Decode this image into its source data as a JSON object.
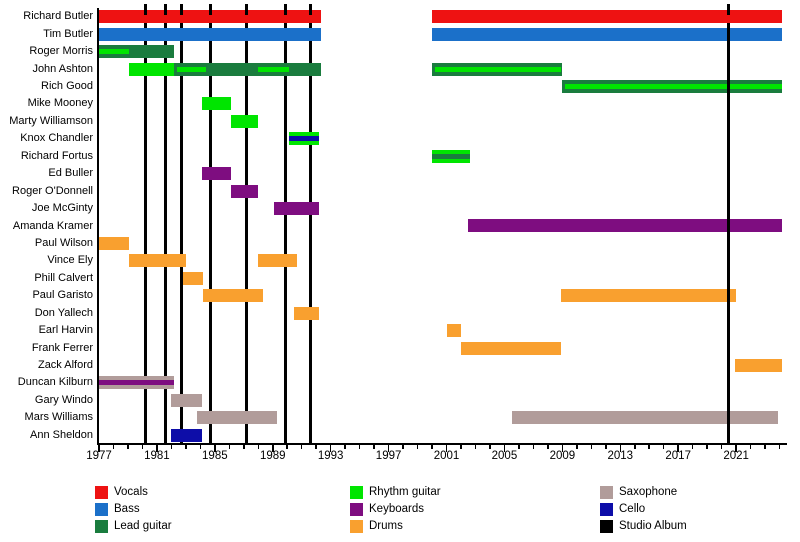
{
  "chart_data": {
    "type": "timeline",
    "x_axis": {
      "start": 1977,
      "end": 2024.3,
      "major_tick_years": [
        1977,
        1981,
        1985,
        1989,
        1993,
        1997,
        2001,
        2005,
        2009,
        2013,
        2017,
        2021
      ],
      "minor_tick_every": 1
    },
    "members": [
      {
        "name": "Richard Butler",
        "segments": [
          {
            "role": "vocals",
            "from": 1977,
            "till": 1992.3
          },
          {
            "role": "vocals",
            "from": 2000,
            "till": 2024.2
          }
        ]
      },
      {
        "name": "Tim Butler",
        "segments": [
          {
            "role": "bass",
            "from": 1977,
            "till": 1992.3
          },
          {
            "role": "bass",
            "from": 2000,
            "till": 2024.2
          }
        ]
      },
      {
        "name": "Roger Morris",
        "segments": [
          {
            "role": "lead_guitar",
            "from": 1977,
            "till": 1982.2,
            "stripes": [
              {
                "role": "rhythm_guitar",
                "from": 1977,
                "till": 1979.1
              }
            ]
          }
        ]
      },
      {
        "name": "John Ashton",
        "segments": [
          {
            "role": "rhythm_guitar",
            "from": 1979.1,
            "till": 1982.2
          },
          {
            "role": "lead_guitar",
            "from": 1982.2,
            "till": 1992.3,
            "stripes": [
              {
                "role": "rhythm_guitar",
                "from": 1982.4,
                "till": 1984.4
              },
              {
                "role": "rhythm_guitar",
                "from": 1988,
                "till": 1990.1
              }
            ]
          },
          {
            "role": "lead_guitar",
            "from": 2000,
            "till": 2009,
            "stripes": [
              {
                "role": "rhythm_guitar",
                "from": 2000.2,
                "till": 2008.9
              }
            ]
          }
        ]
      },
      {
        "name": "Rich Good",
        "segments": [
          {
            "role": "lead_guitar",
            "from": 2009,
            "till": 2024.2,
            "stripes": [
              {
                "role": "rhythm_guitar",
                "from": 2009.2,
                "till": 2024.2
              }
            ]
          }
        ]
      },
      {
        "name": "Mike Mooney",
        "segments": [
          {
            "role": "rhythm_guitar",
            "from": 1984.1,
            "till": 1986.1
          }
        ]
      },
      {
        "name": "Marty Williamson",
        "segments": [
          {
            "role": "rhythm_guitar",
            "from": 1986.1,
            "till": 1988
          }
        ]
      },
      {
        "name": "Knox Chandler",
        "segments": [
          {
            "role": "rhythm_guitar",
            "from": 1990.1,
            "till": 1992.2,
            "stripes": [
              {
                "role": "cello",
                "from": 1990.1,
                "till": 1992.2
              }
            ]
          }
        ]
      },
      {
        "name": "Richard Fortus",
        "segments": [
          {
            "role": "rhythm_guitar",
            "from": 2000,
            "till": 2002.6,
            "stripes": [
              {
                "role": "lead_guitar",
                "from": 2000,
                "till": 2002.6
              }
            ]
          }
        ]
      },
      {
        "name": "Ed Buller",
        "segments": [
          {
            "role": "keyboards",
            "from": 1984.1,
            "till": 1986.1
          }
        ]
      },
      {
        "name": "Roger O'Donnell",
        "segments": [
          {
            "role": "keyboards",
            "from": 1986.1,
            "till": 1988
          }
        ]
      },
      {
        "name": "Joe McGinty",
        "segments": [
          {
            "role": "keyboards",
            "from": 1989.1,
            "till": 1992.2
          }
        ]
      },
      {
        "name": "Amanda Kramer",
        "segments": [
          {
            "role": "keyboards",
            "from": 2002.5,
            "till": 2024.2
          }
        ]
      },
      {
        "name": "Paul Wilson",
        "segments": [
          {
            "role": "drums",
            "from": 1977,
            "till": 1979.1
          }
        ]
      },
      {
        "name": "Vince Ely",
        "segments": [
          {
            "role": "drums",
            "from": 1979.1,
            "till": 1983
          },
          {
            "role": "drums",
            "from": 1988,
            "till": 1990.7
          }
        ]
      },
      {
        "name": "Phill Calvert",
        "segments": [
          {
            "role": "drums",
            "from": 1982.8,
            "till": 1984.2
          }
        ]
      },
      {
        "name": "Paul Garisto",
        "segments": [
          {
            "role": "drums",
            "from": 1984.2,
            "till": 1988.3
          },
          {
            "role": "drums",
            "from": 2008.9,
            "till": 2021
          }
        ]
      },
      {
        "name": "Don Yallech",
        "segments": [
          {
            "role": "drums",
            "from": 1990.5,
            "till": 1992.2
          }
        ]
      },
      {
        "name": "Earl Harvin",
        "segments": [
          {
            "role": "drums",
            "from": 2001,
            "till": 2002
          }
        ]
      },
      {
        "name": "Frank Ferrer",
        "segments": [
          {
            "role": "drums",
            "from": 2002,
            "till": 2008.9
          }
        ]
      },
      {
        "name": "Zack Alford",
        "segments": [
          {
            "role": "drums",
            "from": 2020.9,
            "till": 2024.2
          }
        ]
      },
      {
        "name": "Duncan Kilburn",
        "segments": [
          {
            "role": "saxophone",
            "from": 1977,
            "till": 1982.2,
            "stripes": [
              {
                "role": "keyboards",
                "from": 1977,
                "till": 1982.2
              }
            ]
          }
        ]
      },
      {
        "name": "Gary Windo",
        "segments": [
          {
            "role": "saxophone",
            "from": 1982,
            "till": 1984.1
          }
        ]
      },
      {
        "name": "Mars Williams",
        "segments": [
          {
            "role": "saxophone",
            "from": 1983.8,
            "till": 1989.3
          },
          {
            "role": "saxophone",
            "from": 2005.5,
            "till": 2023.9
          }
        ]
      },
      {
        "name": "Ann Sheldon",
        "segments": [
          {
            "role": "cello",
            "from": 1982,
            "till": 1984.1
          }
        ]
      }
    ],
    "studio_albums": {
      "years": [
        1980.2,
        1981.6,
        1982.7,
        1984.7,
        1987.2,
        1989.9,
        1991.6,
        2020.5
      ],
      "front_overlay_year": 2020.5
    }
  },
  "colors": {
    "vocals": "#EE1212",
    "bass": "#1B70C9",
    "lead_guitar": "#1A7C3E",
    "rhythm_guitar": "#00E500",
    "keyboards": "#7E0D80",
    "drums": "#F9A02F",
    "saxophone": "#B19C9A",
    "cello": "#0D0DA8",
    "studio_album": "#000000"
  },
  "legend": {
    "items": [
      {
        "label": "Vocals",
        "role": "vocals"
      },
      {
        "label": "Bass",
        "role": "bass"
      },
      {
        "label": "Lead guitar",
        "role": "lead_guitar"
      },
      {
        "label": "Rhythm guitar",
        "role": "rhythm_guitar"
      },
      {
        "label": "Keyboards",
        "role": "keyboards"
      },
      {
        "label": "Drums",
        "role": "drums"
      },
      {
        "label": "Saxophone",
        "role": "saxophone"
      },
      {
        "label": "Cello",
        "role": "cello"
      },
      {
        "label": "Studio Album",
        "role": "studio_album"
      }
    ]
  }
}
